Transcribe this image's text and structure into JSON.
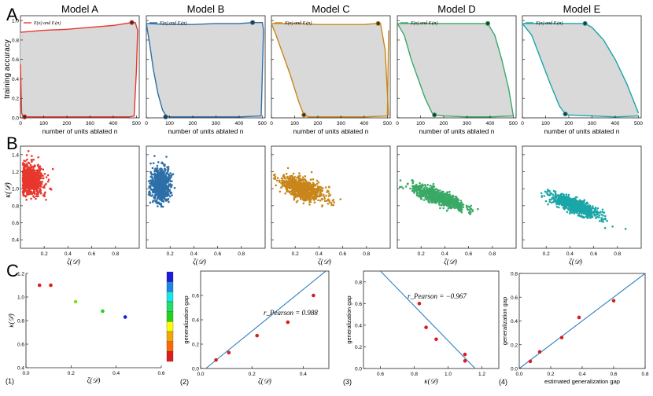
{
  "panel_labels": {
    "A": "A",
    "B": "B",
    "C": "C"
  },
  "row_a": {
    "models": [
      "Model A",
      "Model B",
      "Model C",
      "Model D",
      "Model E"
    ],
    "legend": "E(n) and Eₗ(n)",
    "ylabel": "training accuracy",
    "xlabel": "number of units ablated n",
    "colors": [
      "#e8372d",
      "#2d6fa8",
      "#c8861a",
      "#3aa966",
      "#1aa6a8"
    ],
    "xticks": [
      0,
      100,
      200,
      300,
      400,
      500
    ],
    "yticks": [
      "0.0",
      "0.2",
      "0.4",
      "0.6",
      "0.8",
      "1.0"
    ]
  },
  "row_b": {
    "ylabel": "κ(𝒟)",
    "xlabel": "ζ(𝒟)",
    "xticks": [
      "0.2",
      "0.4",
      "0.6",
      "0.8"
    ],
    "yticks": [
      "0.4",
      "0.6",
      "0.8",
      "1.0",
      "1.2",
      "1.4"
    ]
  },
  "row_c": {
    "sub_labels": [
      "(1)",
      "(2)",
      "(3)",
      "(4)"
    ],
    "p1": {
      "xlabel": "ζ(𝒟)",
      "ylabel": "κ(𝒟)",
      "xticks": [
        "0.0",
        "0.2",
        "0.4",
        "0.6"
      ],
      "yticks": [
        "0.4",
        "0.6",
        "0.8",
        "1.0",
        "1.2"
      ]
    },
    "p2": {
      "xlabel": "ζ(𝒟)",
      "ylabel": "generalization gap",
      "annotation": "r_Pearson = 0.988",
      "xticks": [
        "0.0",
        "0.2",
        "0.4"
      ],
      "yticks": [
        "0.0",
        "0.2",
        "0.4",
        "0.6"
      ]
    },
    "p3": {
      "xlabel": "κ(𝒟)",
      "ylabel": "generalization gap",
      "annotation": "r_Pearson = −0.967",
      "xticks": [
        "0.6",
        "0.8",
        "1.0",
        "1.2"
      ],
      "yticks": [
        "0.0",
        "0.2",
        "0.4",
        "0.6",
        "0.8"
      ]
    },
    "p4": {
      "xlabel": "estimated generalization gap",
      "ylabel": "generalization gap",
      "xticks": [
        "0.0",
        "0.2",
        "0.4",
        "0.6",
        "0.8"
      ],
      "yticks": [
        "0.0",
        "0.2",
        "0.4",
        "0.6",
        "0.8"
      ]
    }
  },
  "chart_data": [
    {
      "type": "area",
      "title": "Model A",
      "xlabel": "number of units ablated n",
      "ylabel": "training accuracy",
      "xlim": [
        0,
        512
      ],
      "ylim": [
        0,
        1.05
      ],
      "color": "#e8372d",
      "series": [
        {
          "name": "E(n) and Eₗ(n)",
          "x": [
            0,
            5,
            10,
            15,
            25,
            50,
            100,
            200,
            300,
            400,
            470,
            490,
            500,
            505
          ],
          "y": [
            0.55,
            0.05,
            0.02,
            0.01,
            0.01,
            0.01,
            0.01,
            0.01,
            0.01,
            0.01,
            0.01,
            0.02,
            0.5,
            0.9
          ]
        },
        {
          "x": [
            0,
            50,
            100,
            200,
            300,
            400,
            480,
            495,
            505
          ],
          "y": [
            0.88,
            0.89,
            0.9,
            0.91,
            0.93,
            0.95,
            0.98,
            0.98,
            0.9
          ]
        }
      ],
      "markers": [
        {
          "x": 18,
          "y": 0.01
        },
        {
          "x": 480,
          "y": 0.98
        }
      ]
    },
    {
      "type": "area",
      "title": "Model B",
      "xlim": [
        0,
        512
      ],
      "ylim": [
        0,
        1.05
      ],
      "color": "#2d6fa8",
      "series": [
        {
          "name": "E(n) and Eₗ(n)",
          "x": [
            0,
            15,
            30,
            50,
            70,
            85,
            100,
            200,
            300,
            400,
            495,
            505
          ],
          "y": [
            0.97,
            0.75,
            0.5,
            0.25,
            0.08,
            0.02,
            0.01,
            0.01,
            0.01,
            0.01,
            0.02,
            0.9
          ]
        },
        {
          "x": [
            0,
            100,
            200,
            300,
            400,
            460,
            500,
            505
          ],
          "y": [
            0.97,
            0.96,
            0.96,
            0.97,
            0.97,
            0.98,
            0.98,
            0.9
          ]
        }
      ],
      "markers": [
        {
          "x": 83,
          "y": 0.01
        },
        {
          "x": 458,
          "y": 0.98
        }
      ]
    },
    {
      "type": "area",
      "title": "Model C",
      "xlim": [
        0,
        512
      ],
      "ylim": [
        0,
        1.05
      ],
      "color": "#c8861a",
      "series": [
        {
          "name": "E(n) and Eₗ(n)",
          "x": [
            0,
            20,
            50,
            80,
            100,
            120,
            140,
            160,
            200,
            300,
            400,
            500,
            505
          ],
          "y": [
            0.97,
            0.85,
            0.65,
            0.45,
            0.3,
            0.15,
            0.03,
            0.01,
            0.01,
            0.01,
            0.01,
            0.02,
            0.9
          ]
        },
        {
          "x": [
            0,
            100,
            200,
            300,
            400,
            450,
            470,
            490,
            505
          ],
          "y": [
            0.97,
            0.97,
            0.96,
            0.96,
            0.96,
            0.97,
            0.97,
            0.7,
            0.02
          ]
        }
      ],
      "markers": [
        {
          "x": 140,
          "y": 0.03
        },
        {
          "x": 460,
          "y": 0.97
        }
      ]
    },
    {
      "type": "area",
      "title": "Model D",
      "xlim": [
        0,
        512
      ],
      "ylim": [
        0,
        1.05
      ],
      "color": "#3aa966",
      "series": [
        {
          "name": "E(n) and Eₗ(n)",
          "x": [
            0,
            30,
            60,
            90,
            120,
            150,
            160,
            200,
            300,
            400,
            500
          ],
          "y": [
            0.97,
            0.85,
            0.6,
            0.4,
            0.2,
            0.05,
            0.03,
            0.02,
            0.01,
            0.01,
            0.02
          ]
        },
        {
          "x": [
            0,
            100,
            200,
            300,
            390,
            420,
            450,
            480,
            500
          ],
          "y": [
            0.97,
            0.97,
            0.97,
            0.97,
            0.97,
            0.85,
            0.6,
            0.3,
            0.02
          ]
        }
      ],
      "markers": [
        {
          "x": 160,
          "y": 0.03
        },
        {
          "x": 390,
          "y": 0.97
        }
      ]
    },
    {
      "type": "area",
      "title": "Model E",
      "xlim": [
        0,
        512
      ],
      "ylim": [
        0,
        1.05
      ],
      "color": "#1aa6a8",
      "series": [
        {
          "name": "E(n) and Eₗ(n)",
          "x": [
            0,
            40,
            80,
            120,
            160,
            185,
            200,
            300,
            400,
            500
          ],
          "y": [
            0.97,
            0.85,
            0.6,
            0.35,
            0.12,
            0.04,
            0.03,
            0.02,
            0.01,
            0.02
          ]
        },
        {
          "x": [
            0,
            100,
            200,
            270,
            300,
            350,
            400,
            450,
            500
          ],
          "y": [
            0.97,
            0.97,
            0.97,
            0.97,
            0.93,
            0.8,
            0.6,
            0.35,
            0.05
          ]
        }
      ],
      "markers": [
        {
          "x": 185,
          "y": 0.04
        },
        {
          "x": 270,
          "y": 0.97
        }
      ]
    },
    {
      "type": "scatter",
      "xlabel": "ζ(𝒟)",
      "ylabel": "κ(𝒟)",
      "xlim": [
        0,
        1
      ],
      "ylim": [
        0.3,
        1.5
      ],
      "clusters": [
        {
          "model": "Model A",
          "color": "#e8372d",
          "cx": 0.08,
          "cy": 1.1,
          "sx": 0.06,
          "sy": 0.09,
          "slope": 0,
          "n": 700
        },
        {
          "model": "Model B",
          "color": "#2d6fa8",
          "cx": 0.12,
          "cy": 1.05,
          "sx": 0.04,
          "sy": 0.1,
          "slope": 0,
          "n": 700
        },
        {
          "model": "Model C",
          "color": "#c8861a",
          "cx": 0.26,
          "cy": 1.0,
          "sx": 0.09,
          "sy": 0.06,
          "slope": -0.45,
          "n": 800
        },
        {
          "model": "Model D",
          "color": "#3aa966",
          "cx": 0.35,
          "cy": 0.9,
          "sx": 0.11,
          "sy": 0.04,
          "slope": -0.5,
          "n": 800
        },
        {
          "model": "Model E",
          "color": "#1aa6a8",
          "cx": 0.44,
          "cy": 0.8,
          "sx": 0.1,
          "sy": 0.04,
          "slope": -0.55,
          "n": 800
        }
      ]
    },
    {
      "type": "scatter",
      "xlabel": "ζ(𝒟)",
      "ylabel": "κ(𝒟)",
      "xlim": [
        0,
        0.6
      ],
      "ylim": [
        0.4,
        1.2
      ],
      "x": [
        0.06,
        0.11,
        0.22,
        0.34,
        0.44
      ],
      "y": [
        1.1,
        1.1,
        0.96,
        0.88,
        0.83
      ],
      "colors": [
        "#e21a1a",
        "#e21a1a",
        "#7de01f",
        "#22d418",
        "#1a1ae0"
      ],
      "colorbar": [
        "#e21a1a",
        "#ff6a00",
        "#f4a700",
        "#ffff00",
        "#22d418",
        "#1fe067",
        "#19e6e6",
        "#1a88e6",
        "#1a1ae0"
      ]
    },
    {
      "type": "scatter",
      "xlabel": "ζ(𝒟)",
      "ylabel": "generalization gap",
      "xlim": [
        0,
        0.5
      ],
      "ylim": [
        0,
        0.8
      ],
      "x": [
        0.06,
        0.11,
        0.22,
        0.34,
        0.44
      ],
      "y": [
        0.07,
        0.13,
        0.27,
        0.38,
        0.6
      ],
      "fit": {
        "x": [
          0.02,
          0.5
        ],
        "y": [
          0,
          0.82
        ]
      },
      "annotation": "r_Pearson = 0.988"
    },
    {
      "type": "scatter",
      "xlabel": "κ(𝒟)",
      "ylabel": "generalization gap",
      "xlim": [
        0.5,
        1.3
      ],
      "ylim": [
        0,
        0.9
      ],
      "x": [
        0.83,
        0.87,
        0.93,
        1.1,
        1.1
      ],
      "y": [
        0.6,
        0.38,
        0.27,
        0.13,
        0.07
      ],
      "fit": {
        "x": [
          0.6,
          1.16
        ],
        "y": [
          0.9,
          0
        ]
      },
      "annotation": "r_Pearson = −0.967"
    },
    {
      "type": "scatter",
      "xlabel": "estimated generalization gap",
      "ylabel": "generalization gap",
      "xlim": [
        0,
        0.8
      ],
      "ylim": [
        0,
        0.8
      ],
      "x": [
        0.07,
        0.13,
        0.27,
        0.38,
        0.6
      ],
      "y": [
        0.06,
        0.14,
        0.26,
        0.43,
        0.57
      ],
      "fit": {
        "x": [
          0,
          0.8
        ],
        "y": [
          0,
          0.8
        ]
      }
    }
  ]
}
